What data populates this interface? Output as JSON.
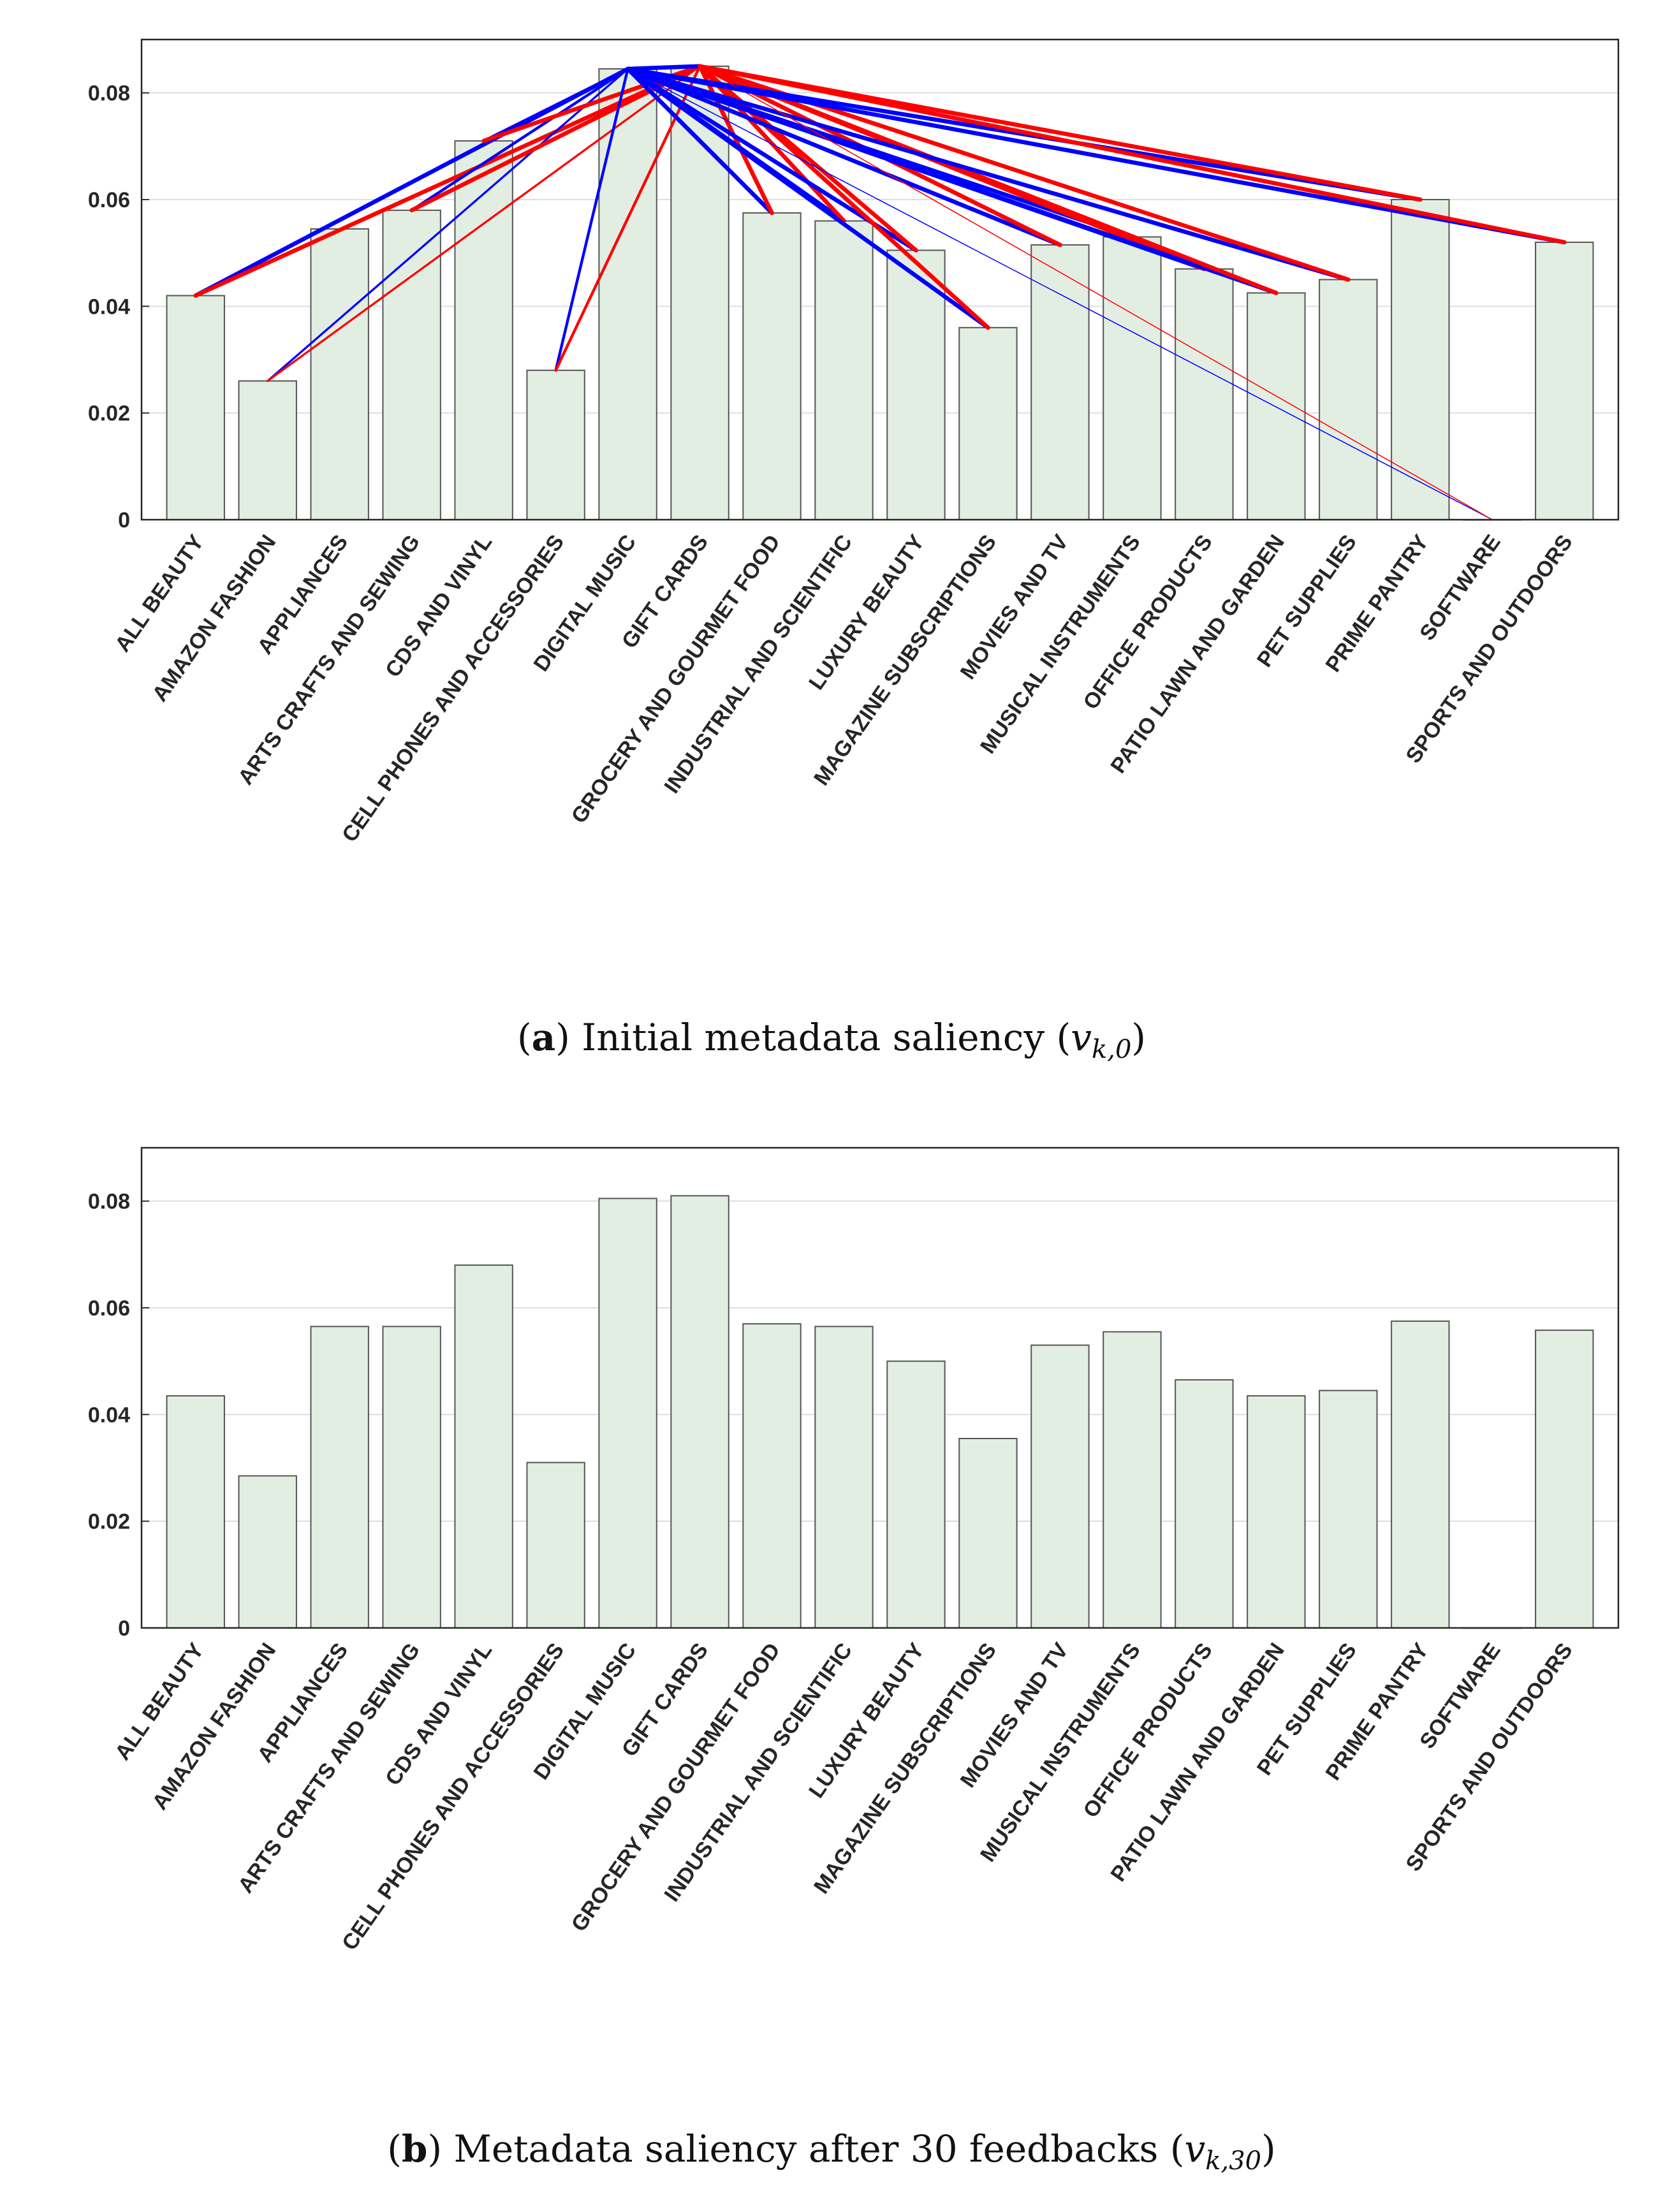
{
  "chart_data": [
    {
      "type": "bar",
      "panel": "a",
      "caption": {
        "label": "a",
        "text": "Initial metadata saliency (",
        "var": "v",
        "sub": "k,0",
        "close": ")"
      },
      "categories": [
        "ALL BEAUTY",
        "AMAZON FASHION",
        "APPLIANCES",
        "ARTS CRAFTS AND SEWING",
        "CDS AND VINYL",
        "CELL PHONES AND ACCESSORIES",
        "DIGITAL MUSIC",
        "GIFT CARDS",
        "GROCERY AND GOURMET FOOD",
        "INDUSTRIAL AND SCIENTIFIC",
        "LUXURY BEAUTY",
        "MAGAZINE SUBSCRIPTIONS",
        "MOVIES AND TV",
        "MUSICAL INSTRUMENTS",
        "OFFICE PRODUCTS",
        "PATIO LAWN AND GARDEN",
        "PET SUPPLIES",
        "PRIME PANTRY",
        "SOFTWARE",
        "SPORTS AND OUTDOORS"
      ],
      "values": [
        0.042,
        0.026,
        0.0545,
        0.058,
        0.071,
        0.028,
        0.0845,
        0.085,
        0.0575,
        0.056,
        0.0505,
        0.036,
        0.0515,
        0.053,
        0.047,
        0.0425,
        0.045,
        0.06,
        0.0,
        0.052
      ],
      "ylim": [
        0,
        0.09
      ],
      "yticks": [
        0,
        0.02,
        0.04,
        0.06,
        0.08
      ],
      "ytick_labels": [
        "0",
        "0.02",
        "0.04",
        "0.06",
        "0.08"
      ],
      "grid": true,
      "bar_color": "#e3eee3",
      "bar_edge": "#555555",
      "links": [
        {
          "from": 6,
          "to": 0,
          "color": "blue",
          "weight": 3
        },
        {
          "from": 7,
          "to": 0,
          "color": "red",
          "weight": 3
        },
        {
          "from": 6,
          "to": 1,
          "color": "blue",
          "weight": 1.5
        },
        {
          "from": 7,
          "to": 1,
          "color": "red",
          "weight": 1.5
        },
        {
          "from": 6,
          "to": 3,
          "color": "blue",
          "weight": 2
        },
        {
          "from": 7,
          "to": 3,
          "color": "red",
          "weight": 3
        },
        {
          "from": 6,
          "to": 4,
          "color": "blue",
          "weight": 2
        },
        {
          "from": 7,
          "to": 4,
          "color": "red",
          "weight": 3
        },
        {
          "from": 6,
          "to": 5,
          "color": "blue",
          "weight": 2
        },
        {
          "from": 7,
          "to": 5,
          "color": "red",
          "weight": 2
        },
        {
          "from": 6,
          "to": 7,
          "color": "blue",
          "weight": 3
        },
        {
          "from": 6,
          "to": 8,
          "color": "blue",
          "weight": 3
        },
        {
          "from": 7,
          "to": 8,
          "color": "red",
          "weight": 3
        },
        {
          "from": 6,
          "to": 9,
          "color": "blue",
          "weight": 3
        },
        {
          "from": 7,
          "to": 9,
          "color": "red",
          "weight": 3
        },
        {
          "from": 6,
          "to": 10,
          "color": "blue",
          "weight": 3
        },
        {
          "from": 7,
          "to": 10,
          "color": "red",
          "weight": 3
        },
        {
          "from": 6,
          "to": 11,
          "color": "blue",
          "weight": 3
        },
        {
          "from": 7,
          "to": 11,
          "color": "red",
          "weight": 3
        },
        {
          "from": 6,
          "to": 12,
          "color": "blue",
          "weight": 3
        },
        {
          "from": 7,
          "to": 12,
          "color": "red",
          "weight": 3
        },
        {
          "from": 6,
          "to": 13,
          "color": "blue",
          "weight": 3
        },
        {
          "from": 7,
          "to": 13,
          "color": "red",
          "weight": 3
        },
        {
          "from": 6,
          "to": 14,
          "color": "blue",
          "weight": 3
        },
        {
          "from": 7,
          "to": 14,
          "color": "red",
          "weight": 3
        },
        {
          "from": 6,
          "to": 15,
          "color": "blue",
          "weight": 3
        },
        {
          "from": 7,
          "to": 15,
          "color": "red",
          "weight": 3
        },
        {
          "from": 6,
          "to": 16,
          "color": "blue",
          "weight": 3
        },
        {
          "from": 7,
          "to": 16,
          "color": "red",
          "weight": 3
        },
        {
          "from": 6,
          "to": 17,
          "color": "blue",
          "weight": 3
        },
        {
          "from": 7,
          "to": 17,
          "color": "red",
          "weight": 3
        },
        {
          "from": 6,
          "to": 18,
          "color": "blue",
          "weight": 0.7
        },
        {
          "from": 7,
          "to": 18,
          "color": "red",
          "weight": 0.7
        },
        {
          "from": 6,
          "to": 19,
          "color": "blue",
          "weight": 3
        },
        {
          "from": 7,
          "to": 19,
          "color": "red",
          "weight": 3
        }
      ]
    },
    {
      "type": "bar",
      "panel": "b",
      "caption": {
        "label": "b",
        "text": "Metadata saliency after 30 feedbacks (",
        "var": "v",
        "sub": "k,30",
        "close": ")"
      },
      "categories": [
        "ALL BEAUTY",
        "AMAZON FASHION",
        "APPLIANCES",
        "ARTS CRAFTS AND SEWING",
        "CDS AND VINYL",
        "CELL PHONES AND ACCESSORIES",
        "DIGITAL MUSIC",
        "GIFT CARDS",
        "GROCERY AND GOURMET FOOD",
        "INDUSTRIAL AND SCIENTIFIC",
        "LUXURY BEAUTY",
        "MAGAZINE SUBSCRIPTIONS",
        "MOVIES AND TV",
        "MUSICAL INSTRUMENTS",
        "OFFICE PRODUCTS",
        "PATIO LAWN AND GARDEN",
        "PET SUPPLIES",
        "PRIME PANTRY",
        "SOFTWARE",
        "SPORTS AND OUTDOORS"
      ],
      "values": [
        0.0435,
        0.0285,
        0.0565,
        0.0565,
        0.068,
        0.031,
        0.0805,
        0.081,
        0.057,
        0.0565,
        0.05,
        0.0355,
        0.053,
        0.0555,
        0.0465,
        0.0435,
        0.0445,
        0.0575,
        0.0,
        0.0558
      ],
      "ylim": [
        0,
        0.09
      ],
      "yticks": [
        0,
        0.02,
        0.04,
        0.06,
        0.08
      ],
      "ytick_labels": [
        "0",
        "0.02",
        "0.04",
        "0.06",
        "0.08"
      ],
      "grid": true,
      "bar_color": "#e3eee3",
      "bar_edge": "#555555",
      "links": []
    }
  ]
}
